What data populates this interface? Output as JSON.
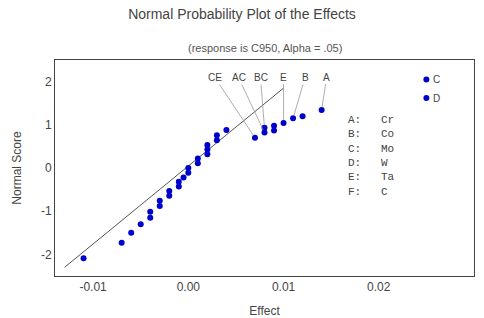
{
  "chart_data": {
    "type": "scatter",
    "title": "Normal Probability Plot of the Effects",
    "subtitle": "(response is C950, Alpha = .05)",
    "xlabel": "Effect",
    "ylabel": "Normal Score",
    "x": [
      -0.011,
      -0.007,
      -0.006,
      -0.005,
      -0.004,
      -0.004,
      -0.003,
      -0.003,
      -0.002,
      -0.002,
      -0.001,
      -0.001,
      -0.0005,
      0.0,
      0.0,
      0.001,
      0.001,
      0.002,
      0.002,
      0.002,
      0.003,
      0.003,
      0.004,
      0.007,
      0.008,
      0.008,
      0.009,
      0.009,
      0.01,
      0.011,
      0.012,
      0.014,
      0.025,
      0.025
    ],
    "values": [
      -2.09,
      -1.73,
      -1.5,
      -1.3,
      -1.15,
      -1.01,
      -0.88,
      -0.76,
      -0.64,
      -0.53,
      -0.43,
      -0.32,
      -0.22,
      -0.11,
      0.0,
      0.11,
      0.22,
      0.32,
      0.43,
      0.53,
      0.64,
      0.76,
      0.88,
      0.7,
      0.82,
      0.93,
      0.87,
      0.98,
      1.04,
      1.15,
      1.2,
      1.34,
      2.05,
      1.62
    ],
    "color": "#0000CD",
    "fit_line": {
      "type": "line",
      "x": [
        -0.013,
        0.01
      ],
      "values": [
        -2.3,
        1.85
      ],
      "color": "#555555"
    },
    "labeled_points": [
      {
        "x": 0.014,
        "y": 1.34,
        "label": "A"
      },
      {
        "x": 0.011,
        "y": 1.15,
        "label": "B"
      },
      {
        "x": 0.008,
        "y": 0.93,
        "label": "BC"
      },
      {
        "x": 0.008,
        "y": 0.82,
        "label": "AC"
      },
      {
        "x": 0.007,
        "y": 0.7,
        "label": "CE"
      },
      {
        "x": 0.01,
        "y": 1.04,
        "label": "E"
      },
      {
        "x": 0.025,
        "y": 2.05,
        "label": "C"
      },
      {
        "x": 0.025,
        "y": 1.62,
        "label": "D"
      }
    ],
    "annotations": [
      {
        "lines": [
          "A:   Cr",
          "B:   Co",
          "C:   Mo",
          "D:   W",
          "E:   Ta",
          "F:   C"
        ]
      }
    ],
    "xlim": [
      -0.014,
      0.03
    ],
    "ylim": [
      -2.5,
      2.5
    ],
    "xticks": [
      -0.01,
      {
        "value": 0,
        "label": "0.00"
      },
      0.01,
      0.02
    ],
    "yticks": [
      -2,
      -1,
      0,
      1,
      2
    ],
    "grid": false
  }
}
